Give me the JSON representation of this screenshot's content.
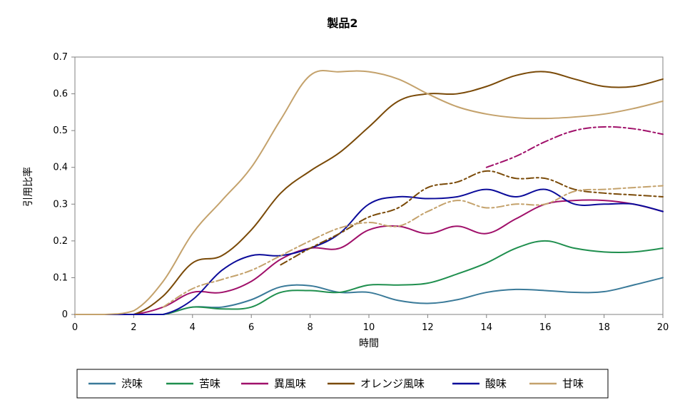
{
  "chart_data": {
    "type": "line",
    "title": "製品2",
    "xlabel": "時間",
    "ylabel": "引用比率",
    "xlim": [
      0,
      20
    ],
    "ylim": [
      0,
      0.7
    ],
    "x_ticks": [
      0,
      2,
      4,
      6,
      8,
      10,
      12,
      14,
      16,
      18,
      20
    ],
    "y_ticks": [
      0,
      0.1,
      0.2,
      0.3,
      0.4,
      0.5,
      0.6,
      0.7
    ],
    "x_tick_labels": [
      "0",
      "2",
      "4",
      "6",
      "8",
      "10",
      "12",
      "14",
      "16",
      "18",
      "20"
    ],
    "y_tick_labels": [
      "0",
      "0.1",
      "0.2",
      "0.3",
      "0.4",
      "0.5",
      "0.6",
      "0.7"
    ],
    "grid": false,
    "legend_position": "bottom",
    "series": [
      {
        "name": "渋味",
        "color": "#3a7a99",
        "x": [
          0,
          1,
          2,
          3,
          4,
          5,
          6,
          7,
          8,
          9,
          10,
          11,
          12,
          13,
          14,
          15,
          16,
          17,
          18,
          19,
          20
        ],
        "y": [
          0,
          0,
          0,
          0,
          0.02,
          0.02,
          0.04,
          0.075,
          0.078,
          0.06,
          0.06,
          0.038,
          0.03,
          0.04,
          0.06,
          0.068,
          0.065,
          0.06,
          0.062,
          0.08,
          0.1
        ]
      },
      {
        "name": "苦味",
        "color": "#1f8f4e",
        "x": [
          0,
          1,
          2,
          3,
          4,
          5,
          6,
          7,
          8,
          9,
          10,
          11,
          12,
          13,
          14,
          15,
          16,
          17,
          18,
          19,
          20
        ],
        "y": [
          0,
          0,
          0,
          0,
          0.02,
          0.015,
          0.02,
          0.06,
          0.065,
          0.06,
          0.08,
          0.08,
          0.085,
          0.11,
          0.14,
          0.18,
          0.2,
          0.18,
          0.17,
          0.17,
          0.18
        ]
      },
      {
        "name": "異風味",
        "color": "#a0106a",
        "x": [
          0,
          1,
          2,
          3,
          4,
          5,
          6,
          7,
          8,
          9,
          10,
          11,
          12,
          13,
          14,
          15,
          16,
          17,
          18,
          19,
          20
        ],
        "y": [
          0,
          0,
          0,
          0.02,
          0.06,
          0.06,
          0.09,
          0.15,
          0.18,
          0.18,
          0.23,
          0.24,
          0.22,
          0.24,
          0.22,
          0.26,
          0.3,
          0.31,
          0.31,
          0.3,
          0.28
        ]
      },
      {
        "name": "オレンジ風味",
        "color": "#7a4a08",
        "x": [
          0,
          1,
          2,
          3,
          4,
          5,
          6,
          7,
          8,
          9,
          10,
          11,
          12,
          13,
          14,
          15,
          16,
          17,
          18,
          19,
          20
        ],
        "y": [
          0,
          0,
          0,
          0.05,
          0.14,
          0.16,
          0.23,
          0.33,
          0.39,
          0.44,
          0.51,
          0.58,
          0.6,
          0.6,
          0.62,
          0.65,
          0.66,
          0.64,
          0.62,
          0.62,
          0.64
        ]
      },
      {
        "name": "酸味",
        "color": "#0b0b9a",
        "x": [
          0,
          1,
          2,
          3,
          4,
          5,
          6,
          7,
          8,
          9,
          10,
          11,
          12,
          13,
          14,
          15,
          16,
          17,
          18,
          19,
          20
        ],
        "y": [
          0,
          0,
          0,
          0,
          0.04,
          0.12,
          0.16,
          0.16,
          0.18,
          0.22,
          0.3,
          0.32,
          0.315,
          0.32,
          0.34,
          0.32,
          0.34,
          0.3,
          0.3,
          0.3,
          0.28
        ]
      },
      {
        "name": "甘味",
        "color": "#c4a26c",
        "x": [
          0,
          1,
          2,
          3,
          4,
          5,
          6,
          7,
          8,
          9,
          10,
          11,
          12,
          13,
          14,
          15,
          16,
          17,
          18,
          19,
          20
        ],
        "y": [
          0,
          0,
          0.01,
          0.09,
          0.22,
          0.31,
          0.4,
          0.53,
          0.65,
          0.66,
          0.66,
          0.64,
          0.6,
          0.565,
          0.545,
          0.535,
          0.533,
          0.537,
          0.545,
          0.56,
          0.58
        ]
      },
      {
        "x": [
          7,
          8,
          9,
          10,
          11,
          12,
          13,
          14,
          15,
          16,
          17,
          18,
          19,
          20
        ],
        "y": [
          0.135,
          0.18,
          0.22,
          0.265,
          0.29,
          0.345,
          0.36,
          0.39,
          0.37,
          0.37,
          0.34,
          0.33,
          0.325,
          0.32
        ],
        "color": "#7a4a08",
        "dash": "10 4 3 4",
        "width": 2
      },
      {
        "x": [
          3,
          4,
          5,
          6,
          7,
          8,
          9,
          10,
          11,
          12,
          13,
          14,
          15,
          16,
          17,
          18,
          19,
          20
        ],
        "y": [
          0.02,
          0.07,
          0.095,
          0.12,
          0.16,
          0.2,
          0.235,
          0.25,
          0.24,
          0.28,
          0.31,
          0.29,
          0.3,
          0.3,
          0.335,
          0.34,
          0.345,
          0.35
        ],
        "color": "#c4a26c",
        "dash": "10 4 3 4",
        "width": 2
      },
      {
        "x": [
          14,
          15,
          16,
          17,
          18,
          19,
          20
        ],
        "y": [
          0.4,
          0.43,
          0.47,
          0.5,
          0.51,
          0.505,
          0.49
        ],
        "color": "#a0106a",
        "dash": "10 4 3 4",
        "width": 2
      }
    ]
  }
}
